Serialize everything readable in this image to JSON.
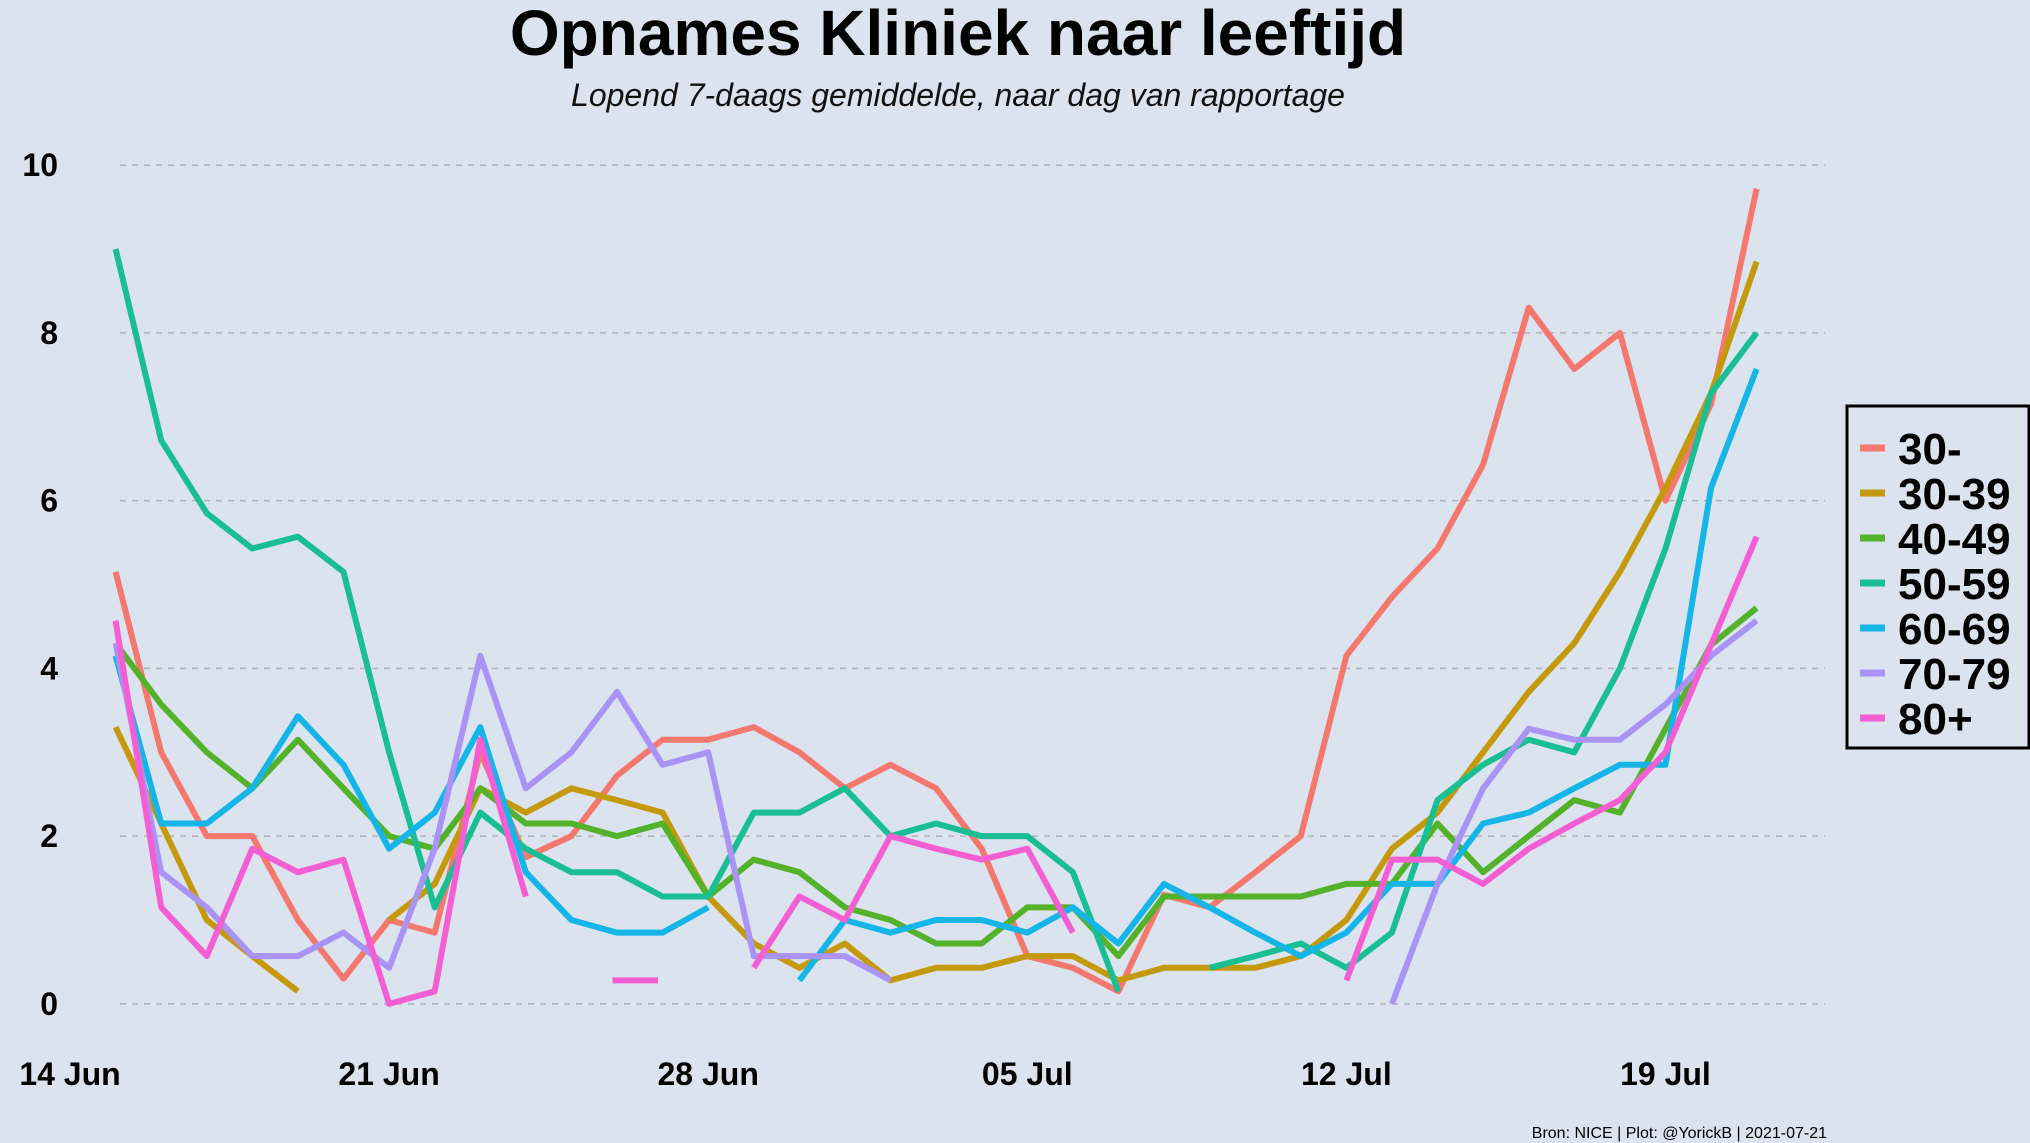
{
  "chart_data": {
    "type": "line",
    "title": "Opnames Kliniek naar leeftijd",
    "subtitle": "Lopend 7-daags gemiddelde, naar dag van rapportage",
    "caption": "Bron: NICE | Plot: @YorickB  |  2021-07-21",
    "xlabel": "",
    "ylabel": "",
    "x_start_date": "2021-06-14",
    "x_ticks": [
      "14 Jun",
      "21 Jun",
      "28 Jun",
      "05 Jul",
      "12 Jul",
      "19 Jul"
    ],
    "x_tick_offsets": [
      0,
      7,
      14,
      21,
      28,
      35
    ],
    "xlim": [
      0,
      38.5
    ],
    "ylim": [
      -0.55,
      10.3
    ],
    "y_ticks": [
      "0",
      "2",
      "4",
      "6",
      "8",
      "10"
    ],
    "y_tick_values": [
      0,
      2,
      4,
      6,
      8,
      10
    ],
    "grid": "horizontal-dashed",
    "legend_position": "right",
    "series": [
      {
        "name": "30-",
        "color": "#f4786d",
        "points": [
          [
            1,
            5.15
          ],
          [
            2,
            3.0
          ],
          [
            3,
            2.0
          ],
          [
            4,
            2.0
          ],
          [
            5,
            1.0
          ],
          [
            6,
            0.3
          ],
          [
            7,
            1.0
          ],
          [
            8,
            0.85
          ],
          [
            9,
            3.0
          ],
          [
            10,
            1.75
          ],
          [
            11,
            2.0
          ],
          [
            12,
            2.72
          ],
          [
            13,
            3.15
          ],
          [
            14,
            3.15
          ],
          [
            15,
            3.3
          ],
          [
            16,
            3.0
          ],
          [
            17,
            2.57
          ],
          [
            18,
            2.85
          ],
          [
            19,
            2.57
          ],
          [
            20,
            1.85
          ],
          [
            21,
            0.57
          ],
          [
            22,
            0.43
          ],
          [
            23,
            0.15
          ],
          [
            24,
            1.3
          ],
          [
            25,
            1.15
          ],
          [
            26,
            1.57
          ],
          [
            27,
            2.0
          ],
          [
            28,
            4.15
          ],
          [
            29,
            4.85
          ],
          [
            30,
            5.43
          ],
          [
            31,
            6.43
          ],
          [
            32,
            8.3
          ],
          [
            33,
            7.57
          ],
          [
            34,
            8.0
          ],
          [
            35,
            6.0
          ],
          [
            36,
            7.15
          ],
          [
            37,
            9.72
          ]
        ]
      },
      {
        "name": "30-39",
        "color": "#c5990c",
        "points": [
          [
            1,
            3.3
          ],
          [
            2,
            2.15
          ],
          [
            3,
            1.0
          ],
          [
            4,
            0.57
          ],
          [
            5,
            0.15
          ],
          null,
          [
            7,
            1.0
          ],
          [
            8,
            1.43
          ],
          [
            9,
            2.57
          ],
          [
            10,
            2.28
          ],
          [
            11,
            2.57
          ],
          [
            12,
            2.43
          ],
          [
            13,
            2.28
          ],
          [
            14,
            1.28
          ],
          [
            15,
            0.72
          ],
          [
            16,
            0.43
          ],
          [
            17,
            0.72
          ],
          [
            18,
            0.28
          ],
          [
            19,
            0.43
          ],
          [
            20,
            0.43
          ],
          [
            21,
            0.57
          ],
          [
            22,
            0.57
          ],
          [
            23,
            0.28
          ],
          [
            24,
            0.43
          ],
          [
            25,
            0.43
          ],
          [
            26,
            0.43
          ],
          [
            27,
            0.57
          ],
          [
            28,
            1.0
          ],
          [
            29,
            1.85
          ],
          [
            30,
            2.28
          ],
          [
            31,
            3.0
          ],
          [
            32,
            3.72
          ],
          [
            33,
            4.3
          ],
          [
            34,
            5.15
          ],
          [
            35,
            6.15
          ],
          [
            36,
            7.28
          ],
          [
            37,
            8.85
          ]
        ]
      },
      {
        "name": "40-49",
        "color": "#53b12a",
        "points": [
          [
            1,
            4.3
          ],
          [
            2,
            3.57
          ],
          [
            3,
            3.0
          ],
          [
            4,
            2.57
          ],
          [
            5,
            3.15
          ],
          [
            6,
            2.57
          ],
          [
            7,
            2.0
          ],
          [
            8,
            1.85
          ],
          [
            9,
            2.57
          ],
          [
            10,
            2.15
          ],
          [
            11,
            2.15
          ],
          [
            12,
            2.0
          ],
          [
            13,
            2.15
          ],
          [
            14,
            1.28
          ],
          [
            15,
            1.72
          ],
          [
            16,
            1.57
          ],
          [
            17,
            1.15
          ],
          [
            18,
            1.0
          ],
          [
            19,
            0.72
          ],
          [
            20,
            0.72
          ],
          [
            21,
            1.15
          ],
          [
            22,
            1.15
          ],
          [
            23,
            0.57
          ],
          [
            24,
            1.28
          ],
          [
            25,
            1.28
          ],
          [
            26,
            1.28
          ],
          [
            27,
            1.28
          ],
          [
            28,
            1.43
          ],
          [
            29,
            1.43
          ],
          [
            30,
            2.15
          ],
          [
            31,
            1.57
          ],
          [
            32,
            2.0
          ],
          [
            33,
            2.43
          ],
          [
            34,
            2.28
          ],
          [
            35,
            3.28
          ],
          [
            36,
            4.28
          ],
          [
            37,
            4.72
          ]
        ]
      },
      {
        "name": "50-59",
        "color": "#19be92",
        "points": [
          [
            1,
            9.0
          ],
          [
            2,
            6.72
          ],
          [
            3,
            5.85
          ],
          [
            4,
            5.43
          ],
          [
            5,
            5.57
          ],
          [
            6,
            5.15
          ],
          [
            7,
            3.0
          ],
          [
            8,
            1.15
          ],
          [
            9,
            2.28
          ],
          [
            10,
            1.85
          ],
          [
            11,
            1.57
          ],
          [
            12,
            1.57
          ],
          [
            13,
            1.28
          ],
          [
            14,
            1.28
          ],
          [
            15,
            2.28
          ],
          [
            16,
            2.28
          ],
          [
            17,
            2.57
          ],
          [
            18,
            2.0
          ],
          [
            19,
            2.15
          ],
          [
            20,
            2.0
          ],
          [
            21,
            2.0
          ],
          [
            22,
            1.57
          ],
          [
            23,
            0.15
          ],
          null,
          [
            25,
            0.43
          ],
          [
            26,
            0.57
          ],
          [
            27,
            0.72
          ],
          [
            28,
            0.43
          ],
          [
            29,
            0.85
          ],
          [
            30,
            2.43
          ],
          [
            31,
            2.85
          ],
          [
            32,
            3.15
          ],
          [
            33,
            3.0
          ],
          [
            34,
            4.0
          ],
          [
            35,
            5.43
          ],
          [
            36,
            7.28
          ],
          [
            37,
            8.0
          ]
        ]
      },
      {
        "name": "60-69",
        "color": "#15b5e8",
        "points": [
          [
            1,
            4.15
          ],
          [
            2,
            2.15
          ],
          [
            3,
            2.15
          ],
          [
            4,
            2.57
          ],
          [
            5,
            3.43
          ],
          [
            6,
            2.85
          ],
          [
            7,
            1.85
          ],
          [
            8,
            2.28
          ],
          [
            9,
            3.3
          ],
          [
            10,
            1.57
          ],
          [
            11,
            1.0
          ],
          [
            12,
            0.85
          ],
          [
            13,
            0.85
          ],
          [
            14,
            1.15
          ],
          null,
          [
            16,
            0.28
          ],
          [
            17,
            1.0
          ],
          [
            18,
            0.85
          ],
          [
            19,
            1.0
          ],
          [
            20,
            1.0
          ],
          [
            21,
            0.85
          ],
          [
            22,
            1.15
          ],
          [
            23,
            0.72
          ],
          [
            24,
            1.43
          ],
          [
            25,
            1.15
          ],
          [
            26,
            0.85
          ],
          [
            27,
            0.57
          ],
          [
            28,
            0.85
          ],
          [
            29,
            1.43
          ],
          [
            30,
            1.43
          ],
          [
            31,
            2.15
          ],
          [
            32,
            2.28
          ],
          [
            33,
            2.57
          ],
          [
            34,
            2.85
          ],
          [
            35,
            2.85
          ],
          [
            36,
            6.15
          ],
          [
            37,
            7.57
          ]
        ]
      },
      {
        "name": "70-79",
        "color": "#a993f5",
        "points": [
          [
            1,
            4.3
          ],
          [
            2,
            1.57
          ],
          [
            3,
            1.15
          ],
          [
            4,
            0.57
          ],
          [
            5,
            0.57
          ],
          [
            6,
            0.85
          ],
          [
            7,
            0.43
          ],
          [
            8,
            1.85
          ],
          [
            9,
            4.15
          ],
          [
            10,
            2.57
          ],
          [
            11,
            3.0
          ],
          [
            12,
            3.72
          ],
          [
            13,
            2.85
          ],
          [
            14,
            3.0
          ],
          [
            15,
            0.57
          ],
          [
            16,
            0.57
          ],
          [
            17,
            0.57
          ],
          [
            18,
            0.28
          ],
          null,
          null,
          null,
          null,
          null,
          null,
          null,
          null,
          null,
          null,
          [
            29,
            0.0
          ],
          [
            30,
            1.43
          ],
          [
            31,
            2.57
          ],
          [
            32,
            3.28
          ],
          [
            33,
            3.15
          ],
          [
            34,
            3.15
          ],
          [
            35,
            3.57
          ],
          [
            36,
            4.15
          ],
          [
            37,
            4.57
          ]
        ]
      },
      {
        "name": "80+",
        "color": "#f45ed3",
        "points": [
          [
            1,
            4.57
          ],
          [
            2,
            1.15
          ],
          [
            3,
            0.57
          ],
          [
            4,
            1.85
          ],
          [
            5,
            1.57
          ],
          [
            6,
            1.72
          ],
          [
            7,
            0.0
          ],
          [
            8,
            0.15
          ],
          [
            9,
            3.15
          ],
          [
            10,
            1.28
          ],
          null,
          [
            11.9,
            0.28
          ],
          [
            12.9,
            0.28
          ],
          null,
          [
            15,
            0.43
          ],
          [
            16,
            1.28
          ],
          [
            17,
            1.0
          ],
          [
            18,
            2.0
          ],
          [
            19,
            1.85
          ],
          [
            20,
            1.72
          ],
          [
            21,
            1.85
          ],
          [
            22,
            0.85
          ],
          null,
          null,
          null,
          null,
          null,
          [
            28,
            0.28
          ],
          [
            29,
            1.72
          ],
          [
            30,
            1.72
          ],
          [
            31,
            1.43
          ],
          [
            32,
            1.85
          ],
          [
            33,
            2.15
          ],
          [
            34,
            2.43
          ],
          [
            35,
            3.0
          ],
          [
            36,
            4.28
          ],
          [
            37,
            5.57
          ]
        ]
      }
    ]
  }
}
